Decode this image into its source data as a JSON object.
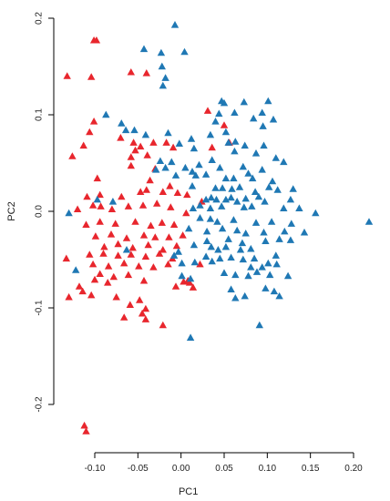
{
  "chart_data": {
    "type": "scatter",
    "marker": "triangle",
    "xlabel": "PC1",
    "ylabel": "PC2",
    "xlim": [
      -0.15,
      0.23
    ],
    "ylim": [
      -0.25,
      0.2
    ],
    "xticks": [
      -0.1,
      -0.05,
      0.0,
      0.05,
      0.1,
      0.15,
      0.2
    ],
    "xtick_labels": [
      "-0.10",
      "-0.05",
      "0.00",
      "0.05",
      "0.10",
      "0.15",
      "0.20"
    ],
    "yticks": [
      -0.2,
      -0.1,
      0.0,
      0.1,
      0.2
    ],
    "ytick_labels": [
      "-0.2",
      "-0.1",
      "0.0",
      "0.1",
      "0.2"
    ],
    "grid": false,
    "series": [
      {
        "color": "#e8262d",
        "points": [
          [
            -0.101,
            0.177
          ],
          [
            -0.098,
            0.177
          ],
          [
            -0.132,
            0.14
          ],
          [
            -0.104,
            0.139
          ],
          [
            -0.058,
            0.144
          ],
          [
            -0.04,
            0.143
          ],
          [
            -0.101,
            0.093
          ],
          [
            -0.106,
            0.082
          ],
          [
            -0.07,
            0.076
          ],
          [
            -0.113,
            0.068
          ],
          [
            -0.055,
            0.071
          ],
          [
            -0.047,
            0.067
          ],
          [
            -0.053,
            0.063
          ],
          [
            -0.032,
            0.071
          ],
          [
            -0.017,
            0.071
          ],
          [
            -0.009,
            0.066
          ],
          [
            -0.058,
            0.056
          ],
          [
            -0.039,
            0.058
          ],
          [
            -0.126,
            0.057
          ],
          [
            -0.058,
            0.047
          ],
          [
            -0.097,
            0.034
          ],
          [
            -0.03,
            0.044
          ],
          [
            -0.036,
            0.032
          ],
          [
            -0.013,
            0.026
          ],
          [
            -0.109,
            0.015
          ],
          [
            -0.094,
            0.017
          ],
          [
            -0.069,
            0.015
          ],
          [
            -0.047,
            0.02
          ],
          [
            -0.04,
            0.022
          ],
          [
            -0.021,
            0.02
          ],
          [
            -0.004,
            0.019
          ],
          [
            0.007,
            0.017
          ],
          [
            -0.12,
            0.002
          ],
          [
            -0.102,
            0.006
          ],
          [
            -0.093,
            0.005
          ],
          [
            -0.08,
            0.002
          ],
          [
            -0.061,
            0.005
          ],
          [
            -0.044,
            0.006
          ],
          [
            -0.028,
            0.008
          ],
          [
            -0.012,
            0.004
          ],
          [
            0.006,
            -0.002
          ],
          [
            -0.11,
            -0.014
          ],
          [
            -0.094,
            -0.011
          ],
          [
            -0.076,
            -0.013
          ],
          [
            -0.053,
            -0.011
          ],
          [
            -0.035,
            -0.015
          ],
          [
            -0.022,
            -0.012
          ],
          [
            -0.008,
            -0.014
          ],
          [
            -0.099,
            -0.026
          ],
          [
            -0.081,
            -0.024
          ],
          [
            -0.063,
            -0.028
          ],
          [
            -0.043,
            -0.025
          ],
          [
            -0.03,
            -0.027
          ],
          [
            -0.014,
            -0.027
          ],
          [
            0.002,
            -0.025
          ],
          [
            -0.089,
            -0.037
          ],
          [
            -0.073,
            -0.034
          ],
          [
            -0.056,
            -0.038
          ],
          [
            -0.038,
            -0.035
          ],
          [
            -0.021,
            -0.04
          ],
          [
            -0.005,
            -0.036
          ],
          [
            -0.133,
            -0.049
          ],
          [
            -0.106,
            -0.045
          ],
          [
            -0.09,
            -0.044
          ],
          [
            -0.073,
            -0.046
          ],
          [
            -0.058,
            -0.045
          ],
          [
            -0.041,
            -0.047
          ],
          [
            -0.025,
            -0.044
          ],
          [
            -0.01,
            -0.049
          ],
          [
            -0.102,
            -0.055
          ],
          [
            -0.084,
            -0.057
          ],
          [
            -0.066,
            -0.054
          ],
          [
            -0.049,
            -0.057
          ],
          [
            -0.032,
            -0.058
          ],
          [
            -0.015,
            -0.055
          ],
          [
            -0.094,
            -0.065
          ],
          [
            -0.078,
            -0.068
          ],
          [
            -0.061,
            -0.066
          ],
          [
            -0.1,
            -0.071
          ],
          [
            -0.085,
            -0.074
          ],
          [
            -0.043,
            -0.072
          ],
          [
            0.003,
            -0.073
          ],
          [
            0.01,
            -0.074
          ],
          [
            0.014,
            -0.079
          ],
          [
            -0.118,
            -0.078
          ],
          [
            -0.114,
            -0.083
          ],
          [
            -0.13,
            -0.089
          ],
          [
            -0.104,
            -0.087
          ],
          [
            -0.075,
            -0.089
          ],
          [
            -0.048,
            -0.092
          ],
          [
            -0.059,
            -0.097
          ],
          [
            -0.041,
            -0.101
          ],
          [
            -0.045,
            -0.106
          ],
          [
            -0.066,
            -0.11
          ],
          [
            -0.041,
            -0.112
          ],
          [
            -0.021,
            -0.118
          ],
          [
            -0.112,
            -0.222
          ],
          [
            -0.11,
            -0.228
          ],
          [
            0.008,
            -0.072
          ],
          [
            0.031,
            0.104
          ],
          [
            0.036,
            0.066
          ],
          [
            0.05,
            0.089
          ],
          [
            0.056,
            0.071
          ],
          [
            0.024,
            0.01
          ],
          [
            0.022,
            -0.055
          ],
          [
            -0.006,
            -0.078
          ]
        ]
      },
      {
        "color": "#1f78b4",
        "points": [
          [
            -0.007,
            0.193
          ],
          [
            -0.043,
            0.168
          ],
          [
            -0.023,
            0.164
          ],
          [
            0.004,
            0.165
          ],
          [
            -0.022,
            0.15
          ],
          [
            -0.018,
            0.138
          ],
          [
            -0.021,
            0.13
          ],
          [
            0.047,
            0.114
          ],
          [
            0.05,
            0.112
          ],
          [
            0.073,
            0.113
          ],
          [
            0.101,
            0.114
          ],
          [
            0.044,
            0.101
          ],
          [
            0.062,
            0.102
          ],
          [
            0.094,
            0.102
          ],
          [
            0.04,
            0.093
          ],
          [
            0.084,
            0.096
          ],
          [
            0.107,
            0.095
          ],
          [
            0.095,
            0.088
          ],
          [
            -0.087,
            0.1
          ],
          [
            -0.069,
            0.091
          ],
          [
            -0.064,
            0.084
          ],
          [
            -0.054,
            0.084
          ],
          [
            -0.041,
            0.079
          ],
          [
            -0.015,
            0.081
          ],
          [
            0.012,
            0.075
          ],
          [
            0.034,
            0.079
          ],
          [
            0.052,
            0.082
          ],
          [
            0.055,
            0.071
          ],
          [
            0.063,
            0.072
          ],
          [
            0.074,
            0.068
          ],
          [
            0.096,
            0.068
          ],
          [
            -0.002,
            0.07
          ],
          [
            0.015,
            0.065
          ],
          [
            0.062,
            0.062
          ],
          [
            0.087,
            0.06
          ],
          [
            0.11,
            0.055
          ],
          [
            -0.024,
            0.052
          ],
          [
            -0.011,
            0.051
          ],
          [
            0.036,
            0.053
          ],
          [
            -0.029,
            0.043
          ],
          [
            -0.018,
            0.045
          ],
          [
            0.005,
            0.045
          ],
          [
            0.021,
            0.048
          ],
          [
            0.045,
            0.045
          ],
          [
            0.072,
            0.046
          ],
          [
            0.078,
            0.039
          ],
          [
            0.094,
            0.043
          ],
          [
            0.119,
            0.051
          ],
          [
            0.013,
            0.041
          ],
          [
            -0.006,
            0.037
          ],
          [
            0.017,
            0.037
          ],
          [
            0.029,
            0.038
          ],
          [
            0.052,
            0.034
          ],
          [
            0.061,
            0.034
          ],
          [
            0.083,
            0.034
          ],
          [
            0.106,
            0.031
          ],
          [
            0.102,
            0.025
          ],
          [
            0.013,
            0.026
          ],
          [
            0.04,
            0.024
          ],
          [
            0.048,
            0.024
          ],
          [
            0.059,
            0.023
          ],
          [
            0.068,
            0.025
          ],
          [
            0.086,
            0.02
          ],
          [
            0.112,
            0.022
          ],
          [
            0.13,
            0.023
          ],
          [
            -0.097,
            0.012
          ],
          [
            -0.079,
            0.01
          ],
          [
            0.029,
            0.012
          ],
          [
            0.035,
            0.014
          ],
          [
            0.041,
            0.012
          ],
          [
            0.052,
            0.012
          ],
          [
            0.058,
            0.014
          ],
          [
            0.065,
            0.01
          ],
          [
            0.075,
            0.013
          ],
          [
            0.09,
            0.015
          ],
          [
            0.097,
            0.01
          ],
          [
            0.127,
            0.012
          ],
          [
            0.014,
            0.003
          ],
          [
            0.022,
            0.006
          ],
          [
            0.034,
            0.003
          ],
          [
            0.047,
            0.005
          ],
          [
            0.073,
            0.004
          ],
          [
            0.082,
            0.005
          ],
          [
            0.119,
            0.003
          ],
          [
            0.137,
            0.003
          ],
          [
            0.156,
            -0.002
          ],
          [
            -0.13,
            -0.002
          ],
          [
            0.022,
            -0.007
          ],
          [
            0.034,
            -0.008
          ],
          [
            0.042,
            -0.011
          ],
          [
            0.061,
            -0.009
          ],
          [
            0.087,
            -0.012
          ],
          [
            0.105,
            -0.011
          ],
          [
            0.128,
            -0.013
          ],
          [
            0.218,
            -0.011
          ],
          [
            0.009,
            -0.018
          ],
          [
            0.03,
            -0.021
          ],
          [
            0.048,
            -0.018
          ],
          [
            0.065,
            -0.02
          ],
          [
            0.075,
            -0.023
          ],
          [
            0.096,
            -0.022
          ],
          [
            0.12,
            -0.021
          ],
          [
            0.143,
            -0.022
          ],
          [
            0.03,
            -0.031
          ],
          [
            0.055,
            -0.029
          ],
          [
            0.071,
            -0.033
          ],
          [
            0.098,
            -0.031
          ],
          [
            0.114,
            -0.029
          ],
          [
            0.127,
            -0.03
          ],
          [
            0.015,
            -0.035
          ],
          [
            0.035,
            -0.037
          ],
          [
            0.043,
            -0.04
          ],
          [
            0.052,
            -0.037
          ],
          [
            0.069,
            -0.04
          ],
          [
            0.081,
            -0.039
          ],
          [
            -0.063,
            -0.04
          ],
          [
            -0.003,
            -0.042
          ],
          [
            -0.008,
            -0.046
          ],
          [
            0.029,
            -0.047
          ],
          [
            0.036,
            -0.052
          ],
          [
            0.045,
            -0.049
          ],
          [
            0.058,
            -0.048
          ],
          [
            0.072,
            -0.05
          ],
          [
            0.085,
            -0.049
          ],
          [
            0.11,
            -0.046
          ],
          [
            0.001,
            -0.054
          ],
          [
            0.016,
            -0.053
          ],
          [
            0.081,
            -0.058
          ],
          [
            0.094,
            -0.058
          ],
          [
            0.101,
            -0.054
          ],
          [
            0.111,
            -0.055
          ],
          [
            -0.122,
            -0.061
          ],
          [
            0.05,
            -0.064
          ],
          [
            0.063,
            -0.066
          ],
          [
            0.078,
            -0.067
          ],
          [
            0.088,
            -0.063
          ],
          [
            0.103,
            -0.066
          ],
          [
            0.124,
            -0.067
          ],
          [
            0.001,
            -0.067
          ],
          [
            0.011,
            -0.07
          ],
          [
            0.058,
            -0.081
          ],
          [
            0.098,
            -0.08
          ],
          [
            0.063,
            -0.09
          ],
          [
            0.074,
            -0.088
          ],
          [
            0.114,
            -0.088
          ],
          [
            0.108,
            -0.083
          ],
          [
            0.091,
            -0.118
          ],
          [
            0.011,
            -0.131
          ]
        ]
      }
    ]
  }
}
